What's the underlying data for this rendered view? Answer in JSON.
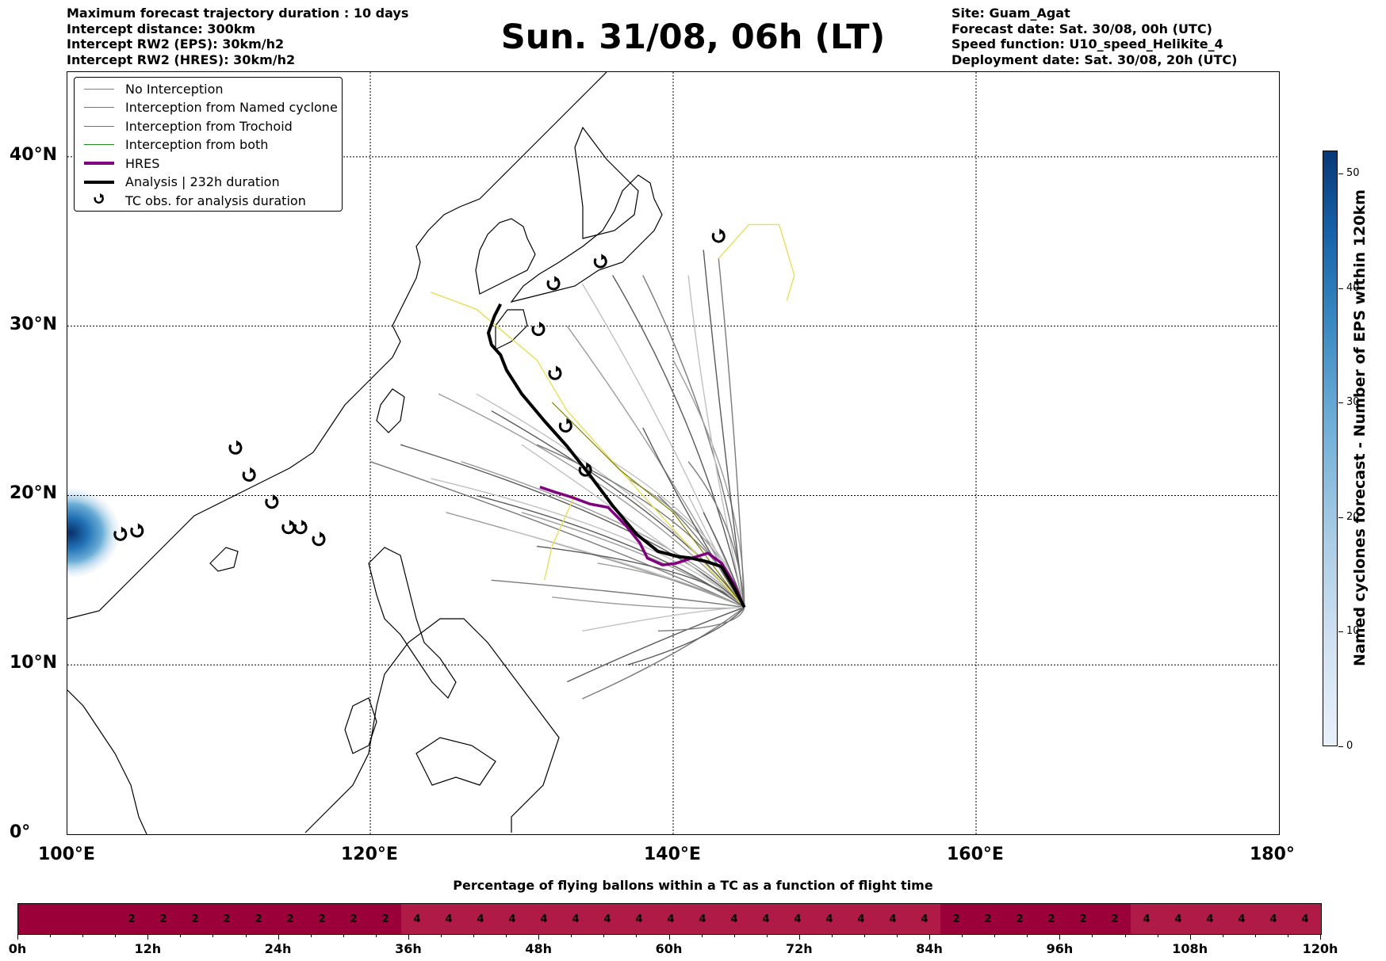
{
  "header": {
    "left_lines": [
      "Maximum forecast trajectory duration : 10 days",
      "Intercept distance: 300km",
      "Intercept RW2 (EPS):  30km/h2",
      "Intercept RW2 (HRES): 30km/h2"
    ],
    "title": "Sun. 31/08, 06h (LT)",
    "right_lines": [
      "Site: Guam_Agat",
      "Forecast date: Sat. 30/08, 00h (UTC)",
      "Speed function: U10_speed_Helikite_4",
      "Deployment date: Sat. 30/08, 20h (UTC)"
    ]
  },
  "map": {
    "lat_labels": [
      "40°N",
      "30°N",
      "20°N",
      "10°N",
      "0°"
    ],
    "lon_labels": [
      "100°E",
      "120°E",
      "140°E",
      "160°E",
      "180°"
    ],
    "lon_range": [
      100,
      180
    ],
    "lat_range": [
      0,
      45
    ],
    "launch_site": {
      "lon": 144.7,
      "lat": 13.4
    },
    "analysis_track": [
      [
        144.7,
        13.4
      ],
      [
        144,
        14.6
      ],
      [
        143.2,
        15.8
      ],
      [
        142.2,
        16.1
      ],
      [
        141.2,
        16.3
      ],
      [
        140.3,
        16.4
      ],
      [
        139,
        16.7
      ],
      [
        137.6,
        17.7
      ],
      [
        136,
        19.4
      ],
      [
        134.5,
        21.2
      ],
      [
        133,
        22.9
      ],
      [
        131.5,
        24.4
      ],
      [
        130,
        26
      ],
      [
        129,
        27.4
      ],
      [
        128.6,
        28.3
      ],
      [
        128,
        28.9
      ],
      [
        127.8,
        29.6
      ],
      [
        128.2,
        30.6
      ],
      [
        128.6,
        31.3
      ]
    ],
    "hres_track": [
      [
        144.7,
        13.4
      ],
      [
        144,
        14.8
      ],
      [
        143.2,
        16
      ],
      [
        142.3,
        16.6
      ],
      [
        141.2,
        16.3
      ],
      [
        140.2,
        16
      ],
      [
        139.3,
        15.9
      ],
      [
        138.3,
        16.3
      ],
      [
        137.8,
        17.2
      ],
      [
        136.9,
        18.2
      ],
      [
        135.7,
        19.3
      ],
      [
        134.5,
        19.5
      ],
      [
        133.3,
        19.9
      ],
      [
        132.2,
        20.2
      ],
      [
        131.2,
        20.5
      ]
    ],
    "tc_obs": [
      [
        143.0,
        35.3
      ],
      [
        135.2,
        33.8
      ],
      [
        132.1,
        32.5
      ],
      [
        131.1,
        29.8
      ],
      [
        132.2,
        27.2
      ],
      [
        132.9,
        24.1
      ],
      [
        134.2,
        21.5
      ],
      [
        111.1,
        22.8
      ],
      [
        112,
        21.2
      ],
      [
        113.5,
        19.6
      ],
      [
        114.6,
        18.1
      ],
      [
        115.4,
        18.1
      ],
      [
        116.6,
        17.4
      ],
      [
        103.5,
        17.7
      ],
      [
        104.6,
        17.9
      ]
    ],
    "eps_blob": {
      "lon": 100.2,
      "lat": 17.8
    }
  },
  "legend": {
    "items": [
      {
        "label": "No Interception",
        "color": "#808080",
        "style": "line-thin"
      },
      {
        "label": "Interception from Named cyclone",
        "color": "#ff4500",
        "style": "line-thin"
      },
      {
        "label": "Interception from Trochoid",
        "color": "#808000",
        "style": "line-thin"
      },
      {
        "label": "Interception from both",
        "color": "#228b22",
        "style": "line-thin"
      },
      {
        "label": "HRES",
        "color": "#800080",
        "style": "line-thick"
      },
      {
        "label": "Analysis | 232h duration",
        "color": "#000000",
        "style": "line-thick"
      },
      {
        "label": "TC obs. for analysis duration",
        "color": "#000000",
        "style": "tc-symbol"
      }
    ]
  },
  "colorbar": {
    "title": "Named cyclones forecast - Number of EPS within 120km",
    "ticks": [
      "0",
      "10",
      "20",
      "30",
      "40",
      "50"
    ],
    "range": [
      0,
      52
    ]
  },
  "pct_bar": {
    "title": "Percentage of flying ballons within a TC as a function of flight time",
    "tick_labels": [
      "0h",
      "12h",
      "24h",
      "36h",
      "48h",
      "60h",
      "72h",
      "84h",
      "96h",
      "108h",
      "120h"
    ],
    "cell_values": [
      "",
      "",
      "",
      "2",
      "2",
      "2",
      "2",
      "2",
      "2",
      "2",
      "2",
      "2",
      "4",
      "4",
      "4",
      "4",
      "4",
      "4",
      "4",
      "4",
      "4",
      "4",
      "4",
      "4",
      "4",
      "4",
      "4",
      "4",
      "4",
      "2",
      "2",
      "2",
      "2",
      "2",
      "2",
      "4",
      "4",
      "4",
      "4",
      "4",
      "4"
    ],
    "colors": {
      "low": "#9c0038",
      "high": "#b01a46"
    }
  }
}
